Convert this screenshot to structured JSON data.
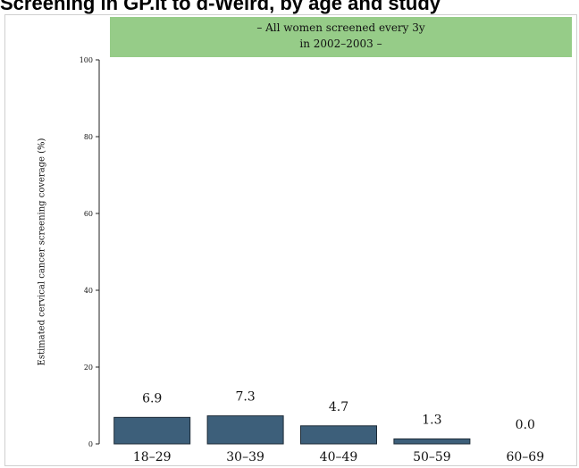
{
  "title": "Screening in GP.it to d-Weird, by age and study",
  "strip": {
    "line1": "– All women screened every 3y",
    "line2": "in 2002–2003 –",
    "color": "#96cc88"
  },
  "chart_data": {
    "type": "bar",
    "categories": [
      "18–29",
      "30–39",
      "40–49",
      "50–59",
      "60–69"
    ],
    "values": [
      6.9,
      7.3,
      4.7,
      1.3,
      0.0
    ],
    "value_labels": [
      "6.9",
      "7.3",
      "4.7",
      "1.3",
      "0.0"
    ],
    "ylabel": "Estimated cervical cancer screening coverage (%)",
    "xlabel": "",
    "ylim": [
      0,
      100
    ],
    "yticks": [
      0,
      20,
      40,
      60,
      80,
      100
    ],
    "bar_color": "#3d5f7a",
    "grid": false
  }
}
